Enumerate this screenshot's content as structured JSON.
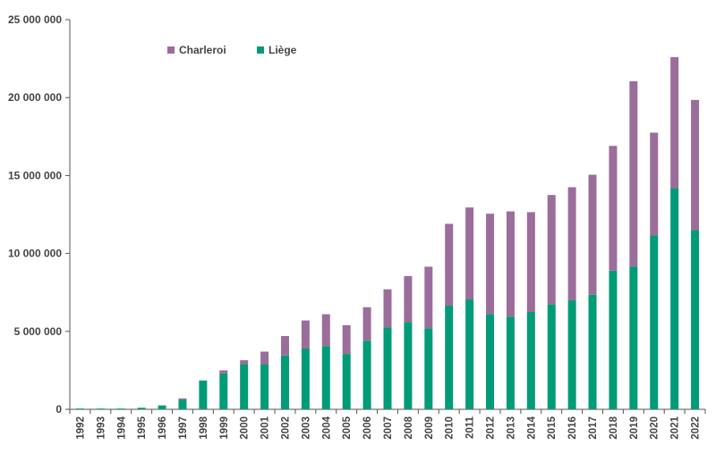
{
  "chart_data": {
    "type": "bar",
    "stacked": true,
    "categories": [
      "1992",
      "1993",
      "1994",
      "1995",
      "1996",
      "1997",
      "1998",
      "1999",
      "2000",
      "2001",
      "2002",
      "2003",
      "2004",
      "2005",
      "2006",
      "2007",
      "2008",
      "2009",
      "2010",
      "2011",
      "2012",
      "2013",
      "2014",
      "2015",
      "2016",
      "2017",
      "2018",
      "2019",
      "2020",
      "2021",
      "2022"
    ],
    "series": [
      {
        "name": "Liège",
        "color": "#009b77",
        "values": [
          50000,
          50000,
          50000,
          100000,
          250000,
          600000,
          1850000,
          2300000,
          2900000,
          2900000,
          3450000,
          3900000,
          4050000,
          3550000,
          4400000,
          5250000,
          5600000,
          5200000,
          6650000,
          7050000,
          6100000,
          5950000,
          6250000,
          6750000,
          7000000,
          7350000,
          8900000,
          9150000,
          11150000,
          14200000,
          11500000
        ]
      },
      {
        "name": "Charleroi",
        "color": "#9b6d9b",
        "values": [
          0,
          0,
          0,
          0,
          0,
          100000,
          0,
          200000,
          250000,
          800000,
          1250000,
          1800000,
          2050000,
          1850000,
          2150000,
          2450000,
          2950000,
          3950000,
          5250000,
          5900000,
          6450000,
          6750000,
          6400000,
          7000000,
          7250000,
          7700000,
          8000000,
          11900000,
          6600000,
          8400000,
          8350000
        ]
      }
    ],
    "ylim": [
      0,
      25000000
    ],
    "yticks": [
      0,
      5000000,
      10000000,
      15000000,
      20000000,
      25000000
    ],
    "ytick_labels": [
      "0",
      "5 000 000",
      "10 000 000",
      "15 000 000",
      "20 000 000",
      "25 000 000"
    ],
    "title": "",
    "xlabel": "",
    "ylabel": "",
    "legend_placement": "top-left",
    "grid": false
  }
}
